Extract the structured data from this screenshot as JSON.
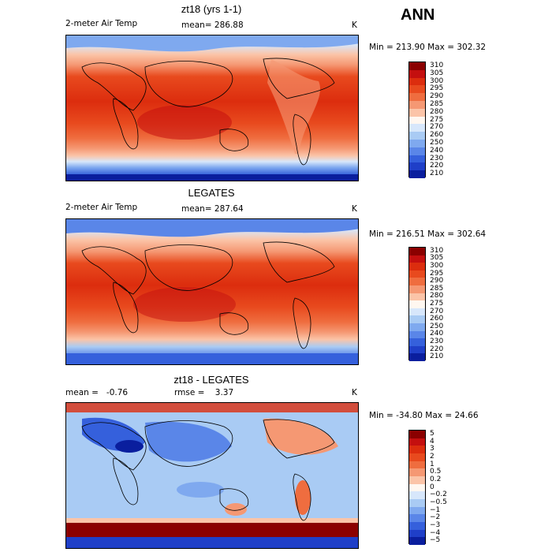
{
  "season": "ANN",
  "panels": [
    {
      "title": "zt18 (yrs 1-1)",
      "variable": "2-meter Air Temp",
      "stat": "mean= 286.88",
      "unit": "K",
      "minmax": "Min = 213.90 Max = 302.32",
      "levels": [
        "310",
        "305",
        "300",
        "295",
        "290",
        "285",
        "280",
        "275",
        "270",
        "260",
        "250",
        "240",
        "230",
        "220",
        "210"
      ],
      "colors": [
        "#8b0000",
        "#c40f0f",
        "#dc2d0e",
        "#e84a1e",
        "#ef6d3f",
        "#f59873",
        "#fbc4a8",
        "#fff7f0",
        "#d7e7fb",
        "#a9cbf4",
        "#7fa9ef",
        "#5a86e8",
        "#3560dc",
        "#1f3fc8",
        "#0a1e9e"
      ]
    },
    {
      "title": "LEGATES",
      "variable": "2-meter Air Temp",
      "stat": "mean= 287.64",
      "unit": "K",
      "minmax": "Min = 216.51 Max = 302.64",
      "levels": [
        "310",
        "305",
        "300",
        "295",
        "290",
        "285",
        "280",
        "275",
        "270",
        "260",
        "250",
        "240",
        "230",
        "220",
        "210"
      ],
      "colors": [
        "#8b0000",
        "#c40f0f",
        "#dc2d0e",
        "#e84a1e",
        "#ef6d3f",
        "#f59873",
        "#fbc4a8",
        "#fff7f0",
        "#d7e7fb",
        "#a9cbf4",
        "#7fa9ef",
        "#5a86e8",
        "#3560dc",
        "#1f3fc8",
        "#0a1e9e"
      ]
    },
    {
      "title": "zt18 - LEGATES",
      "stat_mean": "mean =   -0.76",
      "stat_rmse": "rmse =    3.37",
      "unit": "K",
      "minmax": "Min = -34.80 Max =  24.66",
      "levels": [
        "5",
        "4",
        "3",
        "2",
        "1",
        "0.5",
        "0.2",
        "0",
        "−0.2",
        "−0.5",
        "−1",
        "−2",
        "−3",
        "−4",
        "−5"
      ],
      "colors": [
        "#8b0000",
        "#c40f0f",
        "#dc2d0e",
        "#e84a1e",
        "#ef6d3f",
        "#f59873",
        "#fbc4a8",
        "#fff7f0",
        "#d7e7fb",
        "#a9cbf4",
        "#7fa9ef",
        "#5a86e8",
        "#3560dc",
        "#1f3fc8",
        "#0a1e9e"
      ]
    }
  ]
}
